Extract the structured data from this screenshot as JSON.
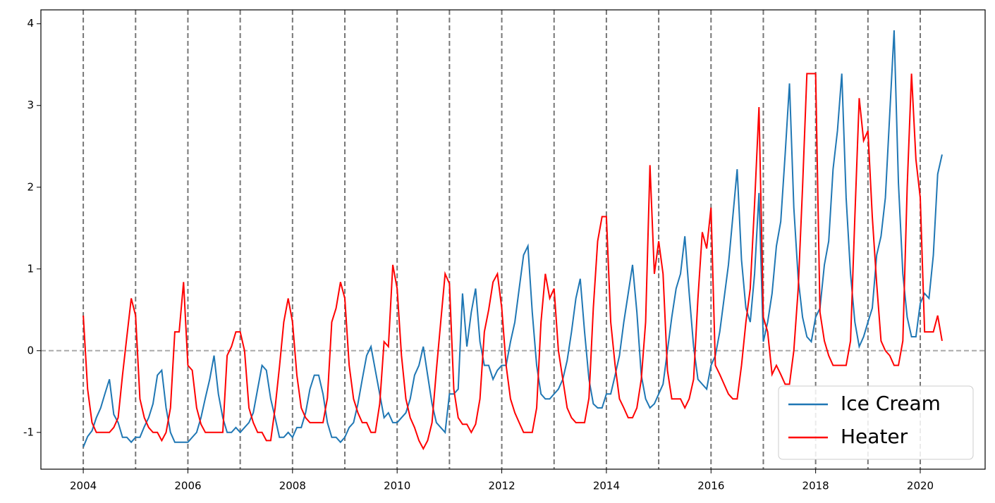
{
  "chart_data": {
    "type": "line",
    "x": [
      2004,
      2004.083,
      2004.167,
      2004.25,
      2004.333,
      2004.417,
      2004.5,
      2004.583,
      2004.667,
      2004.75,
      2004.833,
      2004.917,
      2005,
      2005.083,
      2005.167,
      2005.25,
      2005.333,
      2005.417,
      2005.5,
      2005.583,
      2005.667,
      2005.75,
      2005.833,
      2005.917,
      2006,
      2006.083,
      2006.167,
      2006.25,
      2006.333,
      2006.417,
      2006.5,
      2006.583,
      2006.667,
      2006.75,
      2006.833,
      2006.917,
      2007,
      2007.083,
      2007.167,
      2007.25,
      2007.333,
      2007.417,
      2007.5,
      2007.583,
      2007.667,
      2007.75,
      2007.833,
      2007.917,
      2008,
      2008.083,
      2008.167,
      2008.25,
      2008.333,
      2008.417,
      2008.5,
      2008.583,
      2008.667,
      2008.75,
      2008.833,
      2008.917,
      2009,
      2009.083,
      2009.167,
      2009.25,
      2009.333,
      2009.417,
      2009.5,
      2009.583,
      2009.667,
      2009.75,
      2009.833,
      2009.917,
      2010,
      2010.083,
      2010.167,
      2010.25,
      2010.333,
      2010.417,
      2010.5,
      2010.583,
      2010.667,
      2010.75,
      2010.833,
      2010.917,
      2011,
      2011.083,
      2011.167,
      2011.25,
      2011.333,
      2011.417,
      2011.5,
      2011.583,
      2011.667,
      2011.75,
      2011.833,
      2011.917,
      2012,
      2012.083,
      2012.167,
      2012.25,
      2012.333,
      2012.417,
      2012.5,
      2012.583,
      2012.667,
      2012.75,
      2012.833,
      2012.917,
      2013,
      2013.083,
      2013.167,
      2013.25,
      2013.333,
      2013.417,
      2013.5,
      2013.583,
      2013.667,
      2013.75,
      2013.833,
      2013.917,
      2014,
      2014.083,
      2014.167,
      2014.25,
      2014.333,
      2014.417,
      2014.5,
      2014.583,
      2014.667,
      2014.75,
      2014.833,
      2014.917,
      2015,
      2015.083,
      2015.167,
      2015.25,
      2015.333,
      2015.417,
      2015.5,
      2015.583,
      2015.667,
      2015.75,
      2015.833,
      2015.917,
      2016,
      2016.083,
      2016.167,
      2016.25,
      2016.333,
      2016.417,
      2016.5,
      2016.583,
      2016.667,
      2016.75,
      2016.833,
      2016.917,
      2017,
      2017.083,
      2017.167,
      2017.25,
      2017.333,
      2017.417,
      2017.5,
      2017.583,
      2017.667,
      2017.75,
      2017.833,
      2017.917,
      2018,
      2018.083,
      2018.167,
      2018.25,
      2018.333,
      2018.417,
      2018.5,
      2018.583,
      2018.667,
      2018.75,
      2018.833,
      2018.917,
      2019,
      2019.083,
      2019.167,
      2019.25,
      2019.333,
      2019.417,
      2019.5,
      2019.583,
      2019.667,
      2019.75,
      2019.833,
      2019.917,
      2020,
      2020.083,
      2020.167,
      2020.25,
      2020.333,
      2020.417
    ],
    "series": [
      {
        "name": "Ice Cream",
        "color": "#1f77b4",
        "values": [
          -1.18,
          -1.05,
          -0.98,
          -0.82,
          -0.7,
          -0.52,
          -0.35,
          -0.78,
          -0.88,
          -1.06,
          -1.06,
          -1.12,
          -1.06,
          -1.06,
          -0.93,
          -0.82,
          -0.65,
          -0.3,
          -0.24,
          -0.7,
          -1.0,
          -1.12,
          -1.12,
          -1.12,
          -1.12,
          -1.06,
          -1.0,
          -0.82,
          -0.58,
          -0.35,
          -0.06,
          -0.53,
          -0.82,
          -1.0,
          -1.0,
          -0.94,
          -1.0,
          -0.94,
          -0.88,
          -0.76,
          -0.47,
          -0.18,
          -0.24,
          -0.59,
          -0.82,
          -1.06,
          -1.06,
          -1.0,
          -1.06,
          -0.94,
          -0.94,
          -0.76,
          -0.47,
          -0.3,
          -0.3,
          -0.53,
          -0.88,
          -1.06,
          -1.06,
          -1.12,
          -1.06,
          -0.94,
          -0.88,
          -0.65,
          -0.35,
          -0.06,
          0.05,
          -0.24,
          -0.53,
          -0.82,
          -0.76,
          -0.88,
          -0.88,
          -0.82,
          -0.76,
          -0.59,
          -0.3,
          -0.18,
          0.05,
          -0.3,
          -0.65,
          -0.88,
          -0.94,
          -1.0,
          -0.53,
          -0.53,
          -0.47,
          0.7,
          0.05,
          0.47,
          0.76,
          0.11,
          -0.18,
          -0.18,
          -0.35,
          -0.24,
          -0.18,
          -0.18,
          0.11,
          0.35,
          0.76,
          1.17,
          1.28,
          0.47,
          -0.18,
          -0.53,
          -0.59,
          -0.59,
          -0.53,
          -0.47,
          -0.35,
          -0.12,
          0.23,
          0.64,
          0.88,
          0.23,
          -0.35,
          -0.65,
          -0.7,
          -0.7,
          -0.53,
          -0.53,
          -0.3,
          -0.06,
          0.35,
          0.7,
          1.05,
          0.47,
          -0.3,
          -0.59,
          -0.7,
          -0.65,
          -0.53,
          -0.41,
          0.0,
          0.41,
          0.76,
          0.94,
          1.4,
          0.7,
          0.05,
          -0.35,
          -0.41,
          -0.47,
          -0.18,
          -0.06,
          0.23,
          0.64,
          1.05,
          1.64,
          2.22,
          1.11,
          0.52,
          0.35,
          0.94,
          1.93,
          0.11,
          0.35,
          0.7,
          1.28,
          1.58,
          2.4,
          3.27,
          1.75,
          0.88,
          0.41,
          0.17,
          0.11,
          0.41,
          0.52,
          1.05,
          1.34,
          2.22,
          2.69,
          3.39,
          1.87,
          0.94,
          0.35,
          0.05,
          0.17,
          0.35,
          0.52,
          1.17,
          1.4,
          1.87,
          2.9,
          3.92,
          2.05,
          0.94,
          0.41,
          0.17,
          0.17,
          0.58,
          0.7,
          0.64,
          1.17,
          2.16,
          2.4
        ]
      },
      {
        "name": "Heater",
        "color": "#ff0000",
        "values": [
          0.43,
          -0.47,
          -0.88,
          -1.0,
          -1.0,
          -1.0,
          -1.0,
          -0.94,
          -0.82,
          -0.3,
          0.17,
          0.64,
          0.43,
          -0.59,
          -0.82,
          -0.94,
          -1.0,
          -1.0,
          -1.1,
          -1.0,
          -0.7,
          0.23,
          0.23,
          0.84,
          -0.18,
          -0.24,
          -0.7,
          -0.9,
          -1.0,
          -1.0,
          -1.0,
          -1.0,
          -1.0,
          -0.06,
          0.05,
          0.23,
          0.23,
          0.0,
          -0.7,
          -0.88,
          -1.0,
          -1.0,
          -1.1,
          -1.1,
          -0.7,
          -0.2,
          0.35,
          0.64,
          0.35,
          -0.3,
          -0.7,
          -0.82,
          -0.88,
          -0.88,
          -0.88,
          -0.88,
          -0.58,
          0.35,
          0.52,
          0.84,
          0.64,
          -0.18,
          -0.59,
          -0.76,
          -0.88,
          -0.88,
          -1.0,
          -1.0,
          -0.65,
          0.11,
          0.05,
          1.05,
          0.76,
          -0.06,
          -0.59,
          -0.82,
          -0.94,
          -1.1,
          -1.2,
          -1.1,
          -0.88,
          -0.24,
          0.35,
          0.94,
          0.82,
          -0.47,
          -0.82,
          -0.9,
          -0.9,
          -1.0,
          -0.9,
          -0.59,
          0.23,
          0.5,
          0.84,
          0.94,
          0.52,
          -0.18,
          -0.59,
          -0.76,
          -0.88,
          -1.0,
          -1.0,
          -1.0,
          -0.7,
          0.35,
          0.94,
          0.64,
          0.76,
          0.0,
          -0.35,
          -0.7,
          -0.82,
          -0.88,
          -0.88,
          -0.88,
          -0.58,
          0.52,
          1.34,
          1.64,
          1.64,
          0.35,
          -0.18,
          -0.59,
          -0.7,
          -0.82,
          -0.82,
          -0.7,
          -0.35,
          0.35,
          2.27,
          0.94,
          1.34,
          0.94,
          -0.24,
          -0.59,
          -0.59,
          -0.59,
          -0.7,
          -0.59,
          -0.35,
          0.64,
          1.45,
          1.25,
          1.75,
          -0.18,
          -0.29,
          -0.41,
          -0.53,
          -0.59,
          -0.59,
          -0.18,
          0.35,
          0.76,
          1.8,
          2.98,
          0.41,
          0.23,
          -0.29,
          -0.18,
          -0.29,
          -0.41,
          -0.41,
          0.0,
          0.76,
          2.0,
          3.39,
          3.39,
          3.39,
          0.47,
          0.12,
          -0.06,
          -0.18,
          -0.18,
          -0.18,
          -0.18,
          0.12,
          1.64,
          3.09,
          2.57,
          2.69,
          1.64,
          0.82,
          0.12,
          0.0,
          -0.06,
          -0.18,
          -0.18,
          0.12,
          2.0,
          3.39,
          2.34,
          1.87,
          0.23,
          0.23,
          0.23,
          0.43,
          0.12
        ]
      }
    ],
    "xlim": [
      2003.19,
      2021.24
    ],
    "ylim": [
      -1.45,
      4.17
    ],
    "xticks": [
      2004,
      2006,
      2008,
      2010,
      2012,
      2014,
      2016,
      2018,
      2020
    ],
    "yticks": [
      -1,
      0,
      1,
      2,
      3,
      4
    ],
    "vlines": [
      2004,
      2005,
      2006,
      2007,
      2008,
      2009,
      2010,
      2011,
      2012,
      2013,
      2014,
      2015,
      2016,
      2017,
      2018,
      2019,
      2020
    ],
    "hline": 0,
    "legend": "lower right"
  }
}
